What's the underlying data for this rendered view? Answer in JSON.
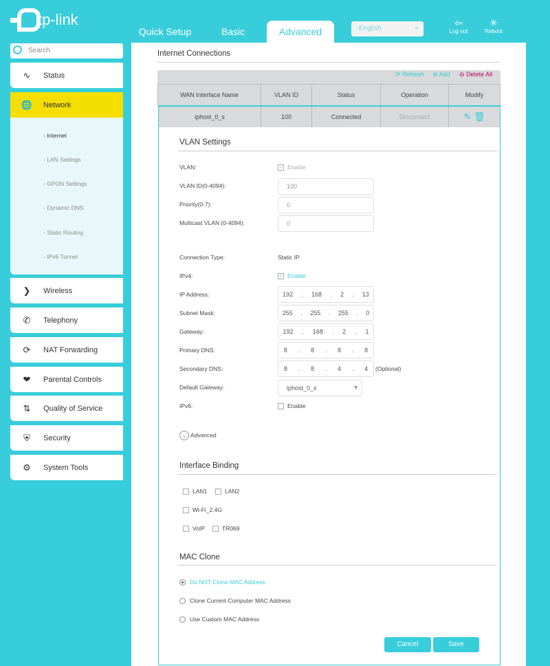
{
  "brand": "tp-link",
  "top_tabs": [
    "Quick Setup",
    "Basic",
    "Advanced"
  ],
  "language": "English",
  "logout": "Log out",
  "reboot": "Reboot",
  "search_placeholder": "Search",
  "nav": [
    "Status",
    "Network",
    "Wireless",
    "Telephony",
    "NAT Forwarding",
    "Parental Controls",
    "Quality of Service",
    "Security",
    "System Tools"
  ],
  "subnav": [
    "- Internet",
    "- LAN Settings",
    "- GPON Settings",
    "- Dynamic DNS",
    "- Static Routing",
    "- IPv6 Tunnel"
  ],
  "section_title": "Internet Connections",
  "toolbar": {
    "refresh": "Refresh",
    "add": "Add",
    "delete_all": "Delete All"
  },
  "table": {
    "headers": [
      "WAN Interface Name",
      "VLAN ID",
      "Status",
      "Operation",
      "Modify"
    ],
    "row": {
      "name": "iphost_0_s",
      "vlan": "100",
      "status": "Connected",
      "operation": "Disconnect"
    }
  },
  "vlan": {
    "title": "VLAN Settings",
    "vlan_label": "VLAN:",
    "enable": "Enable",
    "vlan_id_label": "VLAN ID(0-4094):",
    "vlan_id": "100",
    "priority_label": "Priority(0-7):",
    "priority": "0",
    "multicast_label": "Multicast VLAN (0-4094):",
    "multicast": "0"
  },
  "conn": {
    "type_label": "Connection Type:",
    "type": "Static IP",
    "ipv4_label": "IPv4:",
    "ipv4_enable": "Enable",
    "ip_label": "IP Address:",
    "ip": [
      "192",
      "168",
      "2",
      "13"
    ],
    "mask_label": "Subnet Mask:",
    "mask": [
      "255",
      "255",
      "255",
      "0"
    ],
    "gw_label": "Gateway:",
    "gw": [
      "192",
      "168",
      "2",
      "1"
    ],
    "dns1_label": "Primary DNS:",
    "dns1": [
      "8",
      "8",
      "8",
      "8"
    ],
    "dns2_label": "Secondary DNS:",
    "dns2": [
      "8",
      "8",
      "4",
      "4"
    ],
    "optional": "(Optional)",
    "defgw_label": "Default Gateway:",
    "defgw": "iphost_0_s",
    "ipv6_label": "IPv6:",
    "ipv6_enable": "Enable",
    "advanced": "Advanced"
  },
  "binding": {
    "title": "Interface Binding",
    "items": [
      "LAN1",
      "LAN2",
      "Wi-Fi_2.4G",
      "VoIP",
      "TR069"
    ]
  },
  "mac": {
    "title": "MAC Clone",
    "options": [
      "Do NOT Clone MAC Address",
      "Clone Current Computer MAC Address",
      "Use Custom MAC Address"
    ],
    "selected": 0
  },
  "buttons": {
    "cancel": "Cancel",
    "save": "Save"
  },
  "colors": {
    "accent": "#38cdda",
    "nav_selected": "#f5df00",
    "delete": "#c0006a"
  }
}
